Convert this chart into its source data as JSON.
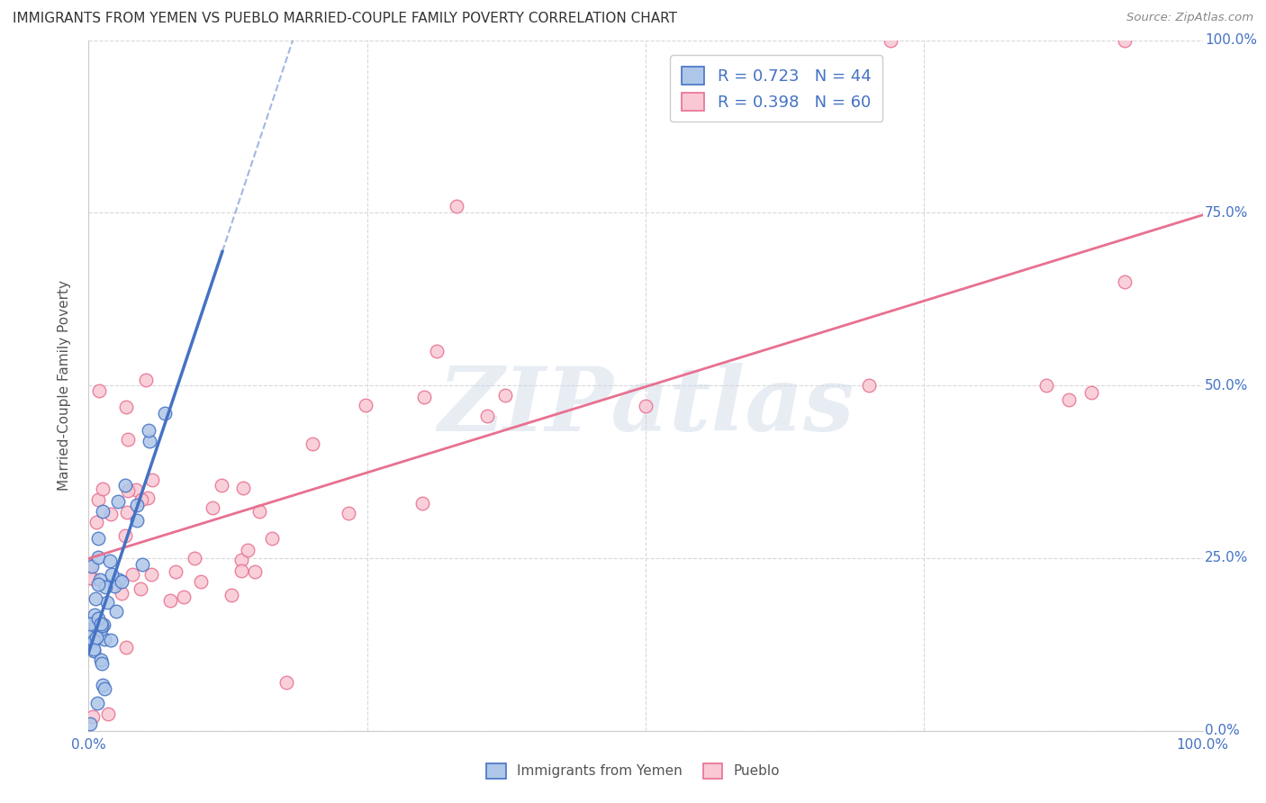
{
  "title": "IMMIGRANTS FROM YEMEN VS PUEBLO MARRIED-COUPLE FAMILY POVERTY CORRELATION CHART",
  "source": "Source: ZipAtlas.com",
  "ylabel": "Married-Couple Family Poverty",
  "series1_name": "Immigrants from Yemen",
  "series1_R": "0.723",
  "series1_N": "44",
  "series1_color": "#aec6e8",
  "series1_edge_color": "#4472c4",
  "series1_line_color": "#4472c4",
  "series2_name": "Pueblo",
  "series2_R": "0.398",
  "series2_N": "60",
  "series2_color": "#f9c8d4",
  "series2_edge_color": "#e87090",
  "series2_line_color": "#e87090",
  "text_color": "#4472c4",
  "watermark": "ZIPatlas",
  "background_color": "#ffffff",
  "grid_color": "#d8d8d8",
  "title_color": "#333333",
  "source_color": "#888888"
}
